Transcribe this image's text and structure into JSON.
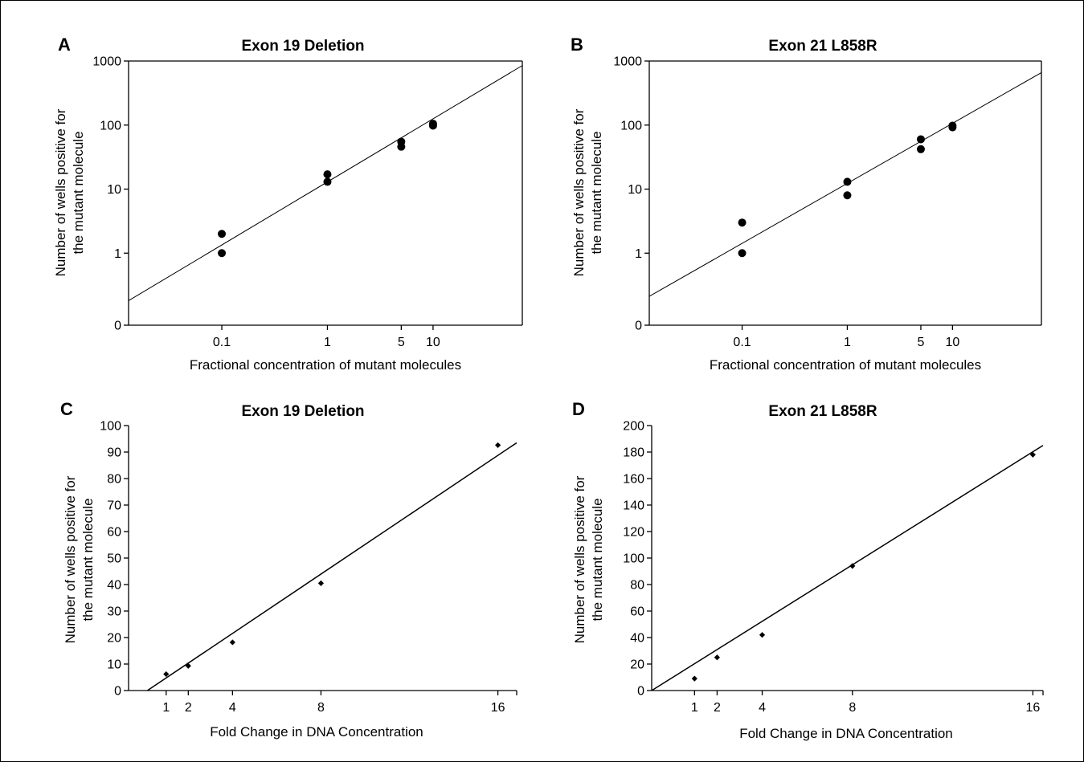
{
  "chart_data": [
    {
      "panel": "A",
      "type": "scatter",
      "title": "Exon 19 Deletion",
      "xlabel": "Fractional concentration of mutant molecules",
      "ylabel_lines": [
        "Number of wells positive for",
        "the mutant molecule"
      ],
      "x_scale": "log",
      "y_scale": "log",
      "x_ticks": [
        0.1,
        1,
        5,
        10
      ],
      "x_tick_labels": [
        "0.1",
        "1",
        "5",
        "10"
      ],
      "y_ticks": [
        0,
        1,
        10,
        100,
        1000
      ],
      "y_tick_labels": [
        "0",
        "1",
        "10",
        "100",
        "1000"
      ],
      "x": [
        0.1,
        0.1,
        1,
        1,
        5,
        5,
        10,
        10
      ],
      "y": [
        2,
        1,
        17,
        13,
        55,
        46,
        105,
        98
      ],
      "fit_line": {
        "x": [
          0.013,
          70
        ],
        "y": [
          0.18,
          850
        ]
      }
    },
    {
      "panel": "B",
      "type": "scatter",
      "title": "Exon 21 L858R",
      "xlabel": "Fractional concentration of mutant molecules",
      "ylabel_lines": [
        "Number of wells positive for",
        "the mutant molecule"
      ],
      "x_scale": "log",
      "y_scale": "log",
      "x_ticks": [
        0.1,
        1,
        5,
        10
      ],
      "x_tick_labels": [
        "0.1",
        "1",
        "5",
        "10"
      ],
      "y_ticks": [
        0,
        1,
        10,
        100,
        1000
      ],
      "y_tick_labels": [
        "0",
        "1",
        "10",
        "100",
        "1000"
      ],
      "x": [
        0.1,
        0.1,
        1,
        1,
        5,
        5,
        10,
        10
      ],
      "y": [
        3,
        1,
        13,
        8,
        60,
        42,
        98,
        92
      ],
      "fit_line": {
        "x": [
          0.013,
          70
        ],
        "y": [
          0.21,
          660
        ]
      }
    },
    {
      "panel": "C",
      "type": "scatter",
      "title": "Exon 19 Deletion",
      "xlabel": "Fold Change in DNA Concentration",
      "ylabel_lines": [
        "Number of wells positive for",
        "the mutant molecule"
      ],
      "xlim": [
        -0.7,
        16.85
      ],
      "ylim": [
        0,
        100
      ],
      "x_ticks": [
        1,
        2,
        4,
        8,
        16
      ],
      "x_tick_labels": [
        "1",
        "2",
        "4",
        "8",
        "16"
      ],
      "y_ticks": [
        0,
        10,
        20,
        30,
        40,
        50,
        60,
        70,
        80,
        90,
        100
      ],
      "x": [
        1,
        2,
        4,
        8,
        16
      ],
      "y": [
        6.2,
        9.3,
        18.2,
        40.5,
        92.6
      ],
      "fit_line": {
        "x": [
          0.15,
          16.85
        ],
        "y": [
          0,
          93.5
        ]
      }
    },
    {
      "panel": "D",
      "type": "scatter",
      "title": "Exon 21 L858R",
      "xlabel": "Fold Change in DNA Concentration",
      "ylabel_lines": [
        "Number of wells positive for",
        "the mutant molecule"
      ],
      "xlim": [
        -0.9,
        16.45
      ],
      "ylim": [
        0,
        200
      ],
      "x_ticks": [
        1,
        2,
        4,
        8,
        16
      ],
      "x_tick_labels": [
        "1",
        "2",
        "4",
        "8",
        "16"
      ],
      "y_ticks": [
        0,
        20,
        40,
        60,
        80,
        100,
        120,
        140,
        160,
        180,
        200
      ],
      "x": [
        1,
        2,
        4,
        8,
        16
      ],
      "y": [
        9,
        25,
        42,
        94,
        178
      ],
      "fit_line": {
        "x": [
          -0.9,
          16.45
        ],
        "y": [
          0,
          185
        ]
      }
    }
  ]
}
